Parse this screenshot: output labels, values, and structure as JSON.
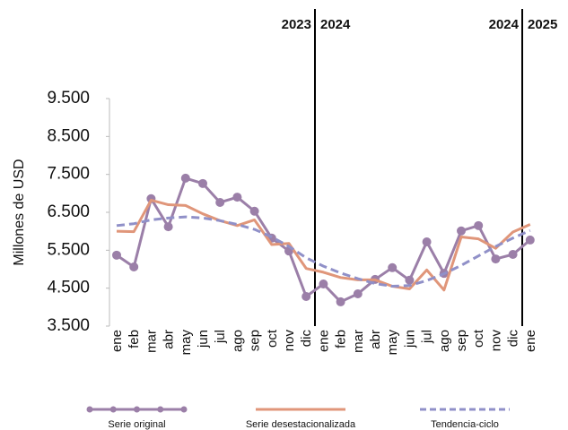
{
  "chart_data": {
    "type": "line",
    "y_label": "Millones de USD",
    "annotations": [
      "2023",
      "2024",
      "2024",
      "2025"
    ],
    "categories": [
      "ene",
      "feb",
      "mar",
      "abr",
      "may",
      "jun",
      "jul",
      "ago",
      "sep",
      "oct",
      "nov",
      "dic",
      "ene",
      "feb",
      "mar",
      "abr",
      "may",
      "jun",
      "jul",
      "ago",
      "sep",
      "oct",
      "nov",
      "dic",
      "ene"
    ],
    "series": [
      {
        "name": "Serie original",
        "color": "#9b7fa8",
        "style": "solid-markers",
        "values": [
          5370,
          5060,
          6860,
          6120,
          7400,
          7260,
          6760,
          6900,
          6530,
          5820,
          5480,
          4280,
          4610,
          4140,
          4350,
          4730,
          5040,
          4710,
          5720,
          4890,
          6010,
          6150,
          5270,
          5390,
          5770
        ]
      },
      {
        "name": "Serie desestacionalizada",
        "color": "#e0967a",
        "style": "solid",
        "values": [
          6000,
          5990,
          6820,
          6700,
          6680,
          6460,
          6280,
          6150,
          6300,
          5650,
          5680,
          5020,
          4920,
          4780,
          4720,
          4720,
          4550,
          4480,
          4980,
          4450,
          5850,
          5800,
          5550,
          5980,
          6180
        ]
      },
      {
        "name": "Tendencia-ciclo",
        "color": "#9090c8",
        "style": "dashed",
        "values": [
          6150,
          6200,
          6300,
          6350,
          6380,
          6350,
          6280,
          6180,
          6050,
          5850,
          5600,
          5300,
          5080,
          4900,
          4750,
          4620,
          4550,
          4570,
          4700,
          4880,
          5100,
          5350,
          5600,
          5820,
          6020
        ]
      }
    ],
    "ylim": [
      3500,
      9500
    ],
    "yticks": [
      {
        "value": 3500,
        "label": "3.500"
      },
      {
        "value": 4500,
        "label": "4.500"
      },
      {
        "value": 5500,
        "label": "5.500"
      },
      {
        "value": 6500,
        "label": "6.500"
      },
      {
        "value": 7500,
        "label": "7.500"
      },
      {
        "value": 8500,
        "label": "8.500"
      },
      {
        "value": 9500,
        "label": "9.500"
      }
    ],
    "grid": false
  }
}
